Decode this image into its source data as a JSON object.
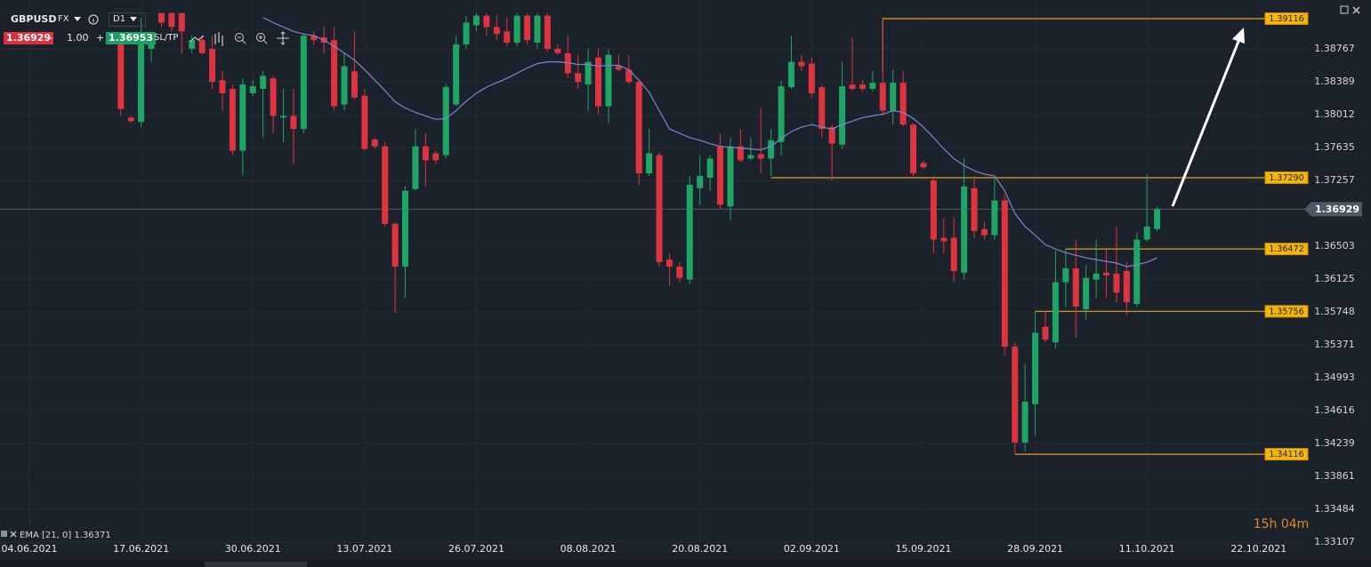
{
  "toolbar": {
    "symbol": "GBPUSD",
    "market": "FX",
    "timeframe": "D1",
    "sell_price": "1.36929",
    "lot_minus": "–",
    "lot": "1.00",
    "lot_plus": "+",
    "buy_price": "1.36953",
    "sltp": "SL/TP"
  },
  "timer": "15h 04m",
  "chart_data": {
    "type": "candlestick",
    "categories": [
      "04.06.2021",
      null,
      null,
      null,
      null,
      null,
      null,
      null,
      null,
      null,
      null,
      "17.06.2021",
      null,
      null,
      null,
      null,
      null,
      null,
      null,
      null,
      null,
      null,
      "30.06.2021",
      null,
      null,
      null,
      null,
      null,
      null,
      null,
      null,
      null,
      null,
      "13.07.2021",
      null,
      null,
      null,
      null,
      null,
      null,
      null,
      null,
      null,
      null,
      "26.07.2021",
      null,
      null,
      null,
      null,
      null,
      null,
      null,
      null,
      null,
      null,
      "08.08.2021",
      null,
      null,
      null,
      null,
      null,
      null,
      null,
      null,
      null,
      null,
      "20.08.2021",
      null,
      null,
      null,
      null,
      null,
      null,
      null,
      null,
      null,
      null,
      "02.09.2021",
      null,
      null,
      null,
      null,
      null,
      null,
      null,
      null,
      null,
      null,
      "15.09.2021",
      null,
      null,
      null,
      null,
      null,
      null,
      null,
      null,
      null,
      null,
      "28.09.2021",
      null,
      null,
      null,
      null,
      null,
      null,
      null,
      null,
      null,
      null,
      "11.10.2021",
      null,
      null,
      null,
      null,
      null,
      null,
      null,
      null,
      null,
      null,
      "22.10.2021",
      null,
      null,
      null,
      null
    ],
    "open": [
      null,
      null,
      null,
      null,
      null,
      null,
      null,
      null,
      null,
      1.3882,
      1.3798,
      1.3793,
      1.3877,
      1.3918,
      1.3918,
      1.3918,
      1.3877,
      1.3887,
      1.3877,
      1.3841,
      1.3831,
      1.376,
      1.3826,
      1.3831,
      1.3843,
      1.3798,
      1.38,
      1.3785,
      1.3892,
      1.389,
      1.3887,
      1.3813,
      1.3851,
      1.3823,
      1.3773,
      1.3765,
      1.3676,
      1.3627,
      1.3716,
      1.3765,
      1.3757,
      1.3755,
      1.3813,
      1.3882,
      1.3904,
      1.3915,
      1.3902,
      1.3897,
      1.3884,
      1.3915,
      1.3884,
      1.3915,
      1.3877,
      1.3872,
      1.3849,
      1.3836,
      1.3867,
      1.3811,
      1.3857,
      1.3853,
      1.3839,
      1.3734,
      1.3755,
      1.3635,
      1.3627,
      1.3612,
      1.3717,
      1.3729,
      1.3765,
      1.3696,
      1.3765,
      1.3751,
      1.3756,
      1.3751,
      1.377,
      1.3833,
      1.3862,
      1.386,
      1.3833,
      1.3787,
      1.3767,
      1.3836,
      1.3836,
      1.3831,
      1.3838,
      1.3806,
      1.3838,
      1.379,
      1.3746,
      1.3726,
      1.366,
      1.366,
      1.362,
      1.3717,
      1.367,
      1.3663,
      1.3703,
      1.3535,
      1.3425,
      1.3469,
      1.3558,
      1.354,
      1.3609,
      1.3625,
      1.3578,
      1.3612,
      1.362,
      1.3619,
      1.3622,
      1.3584,
      1.3658,
      1.367,
      null,
      null,
      null,
      null,
      null,
      null,
      null,
      null,
      null,
      null,
      null,
      null,
      null,
      null
    ],
    "high": [
      null,
      null,
      null,
      null,
      null,
      null,
      null,
      null,
      null,
      1.3892,
      1.38,
      1.3913,
      1.3892,
      1.3918,
      1.3918,
      1.3918,
      1.3892,
      1.3892,
      1.3892,
      1.3851,
      1.3836,
      1.3843,
      1.3841,
      1.3851,
      1.3846,
      1.3831,
      1.3831,
      1.3894,
      1.3897,
      1.3902,
      1.3902,
      1.3872,
      1.3897,
      1.3831,
      1.3775,
      1.377,
      1.3678,
      1.3719,
      1.3785,
      1.378,
      1.376,
      1.3836,
      1.3892,
      1.3915,
      1.3918,
      1.3918,
      1.3915,
      1.3913,
      1.3918,
      1.3918,
      1.3918,
      1.3918,
      1.3882,
      1.3892,
      1.387,
      1.3877,
      1.3877,
      1.3877,
      1.387,
      1.387,
      1.3841,
      1.3785,
      1.3758,
      1.3642,
      1.3632,
      1.3731,
      1.3755,
      1.3755,
      1.378,
      1.3775,
      1.3785,
      1.3775,
      1.3809,
      1.3785,
      1.3841,
      1.3892,
      1.387,
      1.3867,
      1.3836,
      1.379,
      1.3862,
      1.389,
      1.3841,
      1.3851,
      1.3913,
      1.3853,
      1.3851,
      1.3792,
      1.3749,
      1.3731,
      1.3683,
      1.3683,
      1.3751,
      1.3731,
      1.3678,
      1.3729,
      1.3709,
      1.354,
      1.3515,
      1.3576,
      1.3576,
      1.3645,
      1.3647,
      1.3658,
      1.3629,
      1.3658,
      1.3647,
      1.3673,
      1.3632,
      1.3666,
      1.3733,
      1.3696,
      null,
      null,
      null,
      null,
      null,
      null,
      null,
      null,
      null,
      null,
      null,
      null,
      null,
      null
    ],
    "low": [
      null,
      null,
      null,
      null,
      null,
      null,
      null,
      null,
      null,
      1.38,
      1.3792,
      1.3787,
      1.3862,
      1.3902,
      1.3897,
      1.3872,
      1.3872,
      1.387,
      1.3831,
      1.3806,
      1.3755,
      1.3732,
      1.3823,
      1.3775,
      1.378,
      1.377,
      1.3744,
      1.378,
      1.3882,
      1.3872,
      1.3806,
      1.3806,
      1.3819,
      1.376,
      1.3762,
      1.3673,
      1.3574,
      1.3591,
      1.3714,
      1.3719,
      1.3744,
      1.3751,
      1.3811,
      1.3877,
      1.3897,
      1.3892,
      1.3887,
      1.388,
      1.388,
      1.3882,
      1.3877,
      1.3874,
      1.387,
      1.3843,
      1.3831,
      1.3806,
      1.3802,
      1.3792,
      1.3851,
      1.3836,
      1.3721,
      1.3731,
      1.3627,
      1.3605,
      1.3609,
      1.3607,
      1.3698,
      1.3714,
      1.3693,
      1.368,
      1.3747,
      1.3749,
      1.3734,
      1.3731,
      1.3755,
      1.3831,
      1.3851,
      1.3821,
      1.3775,
      1.3726,
      1.3762,
      1.3829,
      1.3828,
      1.3828,
      1.38,
      1.379,
      1.3788,
      1.3731,
      1.3739,
      1.3642,
      1.3642,
      1.3609,
      1.3612,
      1.366,
      1.3658,
      1.3658,
      1.3525,
      1.3413,
      1.3415,
      1.3433,
      1.354,
      1.3533,
      1.3581,
      1.3545,
      1.3566,
      1.3591,
      1.3591,
      1.3586,
      1.3571,
      1.3581,
      1.3656,
      1.3668,
      null,
      null,
      null,
      null,
      null,
      null,
      null,
      null,
      null,
      null,
      null,
      null,
      null,
      null
    ],
    "close": [
      null,
      null,
      null,
      null,
      null,
      null,
      null,
      null,
      null,
      1.3808,
      1.3794,
      1.3892,
      1.3887,
      1.3907,
      1.3902,
      1.3897,
      1.3887,
      1.3872,
      1.3839,
      1.3826,
      1.376,
      1.3836,
      1.3834,
      1.3846,
      1.38,
      1.38,
      1.3785,
      1.3892,
      1.3887,
      1.3884,
      1.3811,
      1.3857,
      1.3821,
      1.3762,
      1.3765,
      1.3676,
      1.3627,
      1.3714,
      1.3765,
      1.3749,
      1.3749,
      1.3833,
      1.3882,
      1.3907,
      1.3915,
      1.3902,
      1.3894,
      1.3884,
      1.3915,
      1.3887,
      1.3915,
      1.3877,
      1.3872,
      1.3849,
      1.3839,
      1.3862,
      1.3811,
      1.387,
      1.3853,
      1.3839,
      1.3734,
      1.3757,
      1.3632,
      1.3627,
      1.3614,
      1.3721,
      1.3731,
      1.3751,
      1.3698,
      1.3765,
      1.3749,
      1.3755,
      1.3751,
      1.3772,
      1.3834,
      1.3862,
      1.3857,
      1.3826,
      1.3785,
      1.3768,
      1.3834,
      1.3831,
      1.3831,
      1.3838,
      1.3806,
      1.3838,
      1.379,
      1.3734,
      1.3741,
      1.3658,
      1.3656,
      1.3622,
      1.3719,
      1.3668,
      1.3663,
      1.3703,
      1.3535,
      1.3425,
      1.3472,
      1.3551,
      1.3543,
      1.3609,
      1.3625,
      1.3581,
      1.3614,
      1.3619,
      1.3617,
      1.3597,
      1.3586,
      1.3658,
      1.3673,
      1.36929,
      null,
      null,
      null,
      null,
      null,
      null,
      null,
      null,
      null,
      null,
      null,
      null,
      null,
      null
    ],
    "up_color": "#1fa565",
    "down_color": "#dd3440",
    "ema": {
      "name": "EMA [21, 0]",
      "color": "#7e84cc",
      "values": [
        null,
        null,
        null,
        null,
        null,
        null,
        null,
        null,
        null,
        null,
        null,
        null,
        null,
        null,
        null,
        null,
        null,
        null,
        null,
        null,
        null,
        null,
        null,
        1.3913,
        1.3907,
        1.3902,
        1.3897,
        1.3894,
        1.3892,
        1.3887,
        1.388,
        1.3872,
        1.3864,
        1.3853,
        1.3841,
        1.3829,
        1.3816,
        1.3809,
        1.3804,
        1.38,
        1.3796,
        1.3797,
        1.3806,
        1.3817,
        1.3826,
        1.3833,
        1.3838,
        1.3843,
        1.3849,
        1.3855,
        1.386,
        1.3862,
        1.3862,
        1.3861,
        1.3859,
        1.3859,
        1.3857,
        1.3858,
        1.3858,
        1.3853,
        1.3841,
        1.3827,
        1.3806,
        1.3785,
        1.378,
        1.3775,
        1.3772,
        1.3768,
        1.3765,
        1.3764,
        1.3763,
        1.3762,
        1.3761,
        1.3765,
        1.3774,
        1.3782,
        1.3787,
        1.379,
        1.3787,
        1.3785,
        1.379,
        1.3794,
        1.3798,
        1.38,
        1.3802,
        1.3806,
        1.3804,
        1.3797,
        1.3787,
        1.3775,
        1.3762,
        1.3751,
        1.3743,
        1.3737,
        1.3733,
        1.3731,
        1.3714,
        1.3688,
        1.3673,
        1.3663,
        1.3652,
        1.3647,
        1.3643,
        1.364,
        1.3637,
        1.3635,
        1.3633,
        1.3631,
        1.3627,
        1.3629,
        1.3632,
        1.36371,
        null,
        null,
        null,
        null,
        null,
        null,
        null,
        null,
        null,
        null,
        null,
        null,
        null,
        null
      ]
    },
    "last_price": 1.36929,
    "levels": [
      1.39116,
      {
        "value": 1.3729,
        "label": "1.37290"
      },
      1.36472,
      1.35756,
      1.34116
    ],
    "level_color": "#e0a21c",
    "ylim": [
      1.33107,
      1.3933
    ],
    "yticks": [
      1.38767,
      1.38389,
      1.38012,
      1.37635,
      1.37257,
      1.36503,
      1.36125,
      1.35748,
      1.35371,
      1.34993,
      1.34616,
      1.34239,
      1.33861,
      1.33484,
      1.33107
    ],
    "grid": true
  }
}
